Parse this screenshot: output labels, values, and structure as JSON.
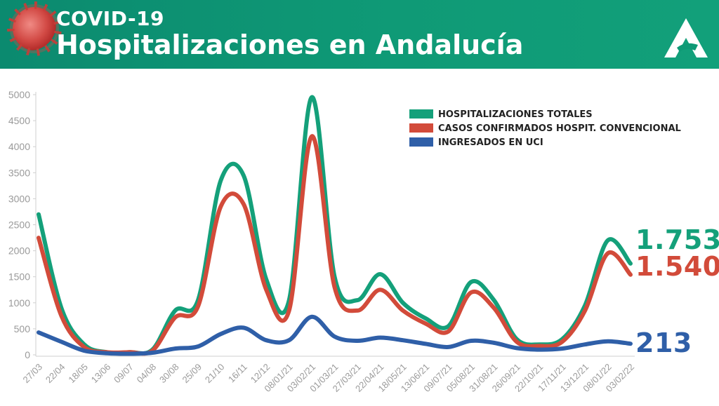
{
  "header": {
    "kicker": "COVID-19",
    "title": "Hospitalizaciones en Andalucía"
  },
  "colors": {
    "header_bg": "#0f9a76",
    "total": "#14a07a",
    "convencional": "#d24b3a",
    "uci": "#2f5fa8"
  },
  "icons": {
    "illustration": "coronavirus-icon",
    "logo": "junta-andalucia-logo-icon"
  },
  "chart_data": {
    "type": "line",
    "ylim": [
      0,
      5000
    ],
    "yticks": [
      0,
      500,
      1000,
      1500,
      2000,
      2500,
      3000,
      3500,
      4000,
      4500,
      5000
    ],
    "x": [
      "27/03",
      "22/04",
      "18/05",
      "13/06",
      "09/07",
      "04/08",
      "30/08",
      "25/09",
      "21/10",
      "16/11",
      "12/12",
      "08/01/21",
      "03/02/21",
      "01/03/21",
      "27/03/21",
      "22/04/21",
      "18/05/21",
      "13/06/21",
      "09/07/21",
      "05/08/21",
      "31/08/21",
      "26/09/21",
      "22/10/21",
      "17/11/21",
      "13/12/21",
      "08/01/22",
      "03/02/22"
    ],
    "legend_position": "top-right",
    "grid": false,
    "series": [
      {
        "name": "HOSPITALIZACIONES TOTALES",
        "values": [
          2700,
          900,
          200,
          50,
          50,
          100,
          850,
          1050,
          3350,
          3450,
          1450,
          1050,
          4950,
          1500,
          1050,
          1550,
          1000,
          700,
          550,
          1400,
          1050,
          300,
          200,
          300,
          950,
          2200,
          1753
        ],
        "end_label": "1.753"
      },
      {
        "name": "CASOS CONFIRMADOS HOSPIT. CONVENCIONAL",
        "values": [
          2250,
          750,
          150,
          50,
          50,
          80,
          720,
          930,
          2850,
          2900,
          1250,
          850,
          4200,
          1300,
          850,
          1250,
          850,
          600,
          450,
          1200,
          900,
          250,
          170,
          250,
          850,
          1950,
          1540
        ],
        "end_label": "1.540"
      },
      {
        "name": "INGRESADOS EN UCI",
        "values": [
          430,
          250,
          80,
          30,
          20,
          40,
          120,
          160,
          400,
          520,
          280,
          280,
          730,
          350,
          270,
          330,
          280,
          210,
          150,
          270,
          230,
          130,
          100,
          120,
          200,
          260,
          213
        ],
        "end_label": "213"
      }
    ]
  }
}
